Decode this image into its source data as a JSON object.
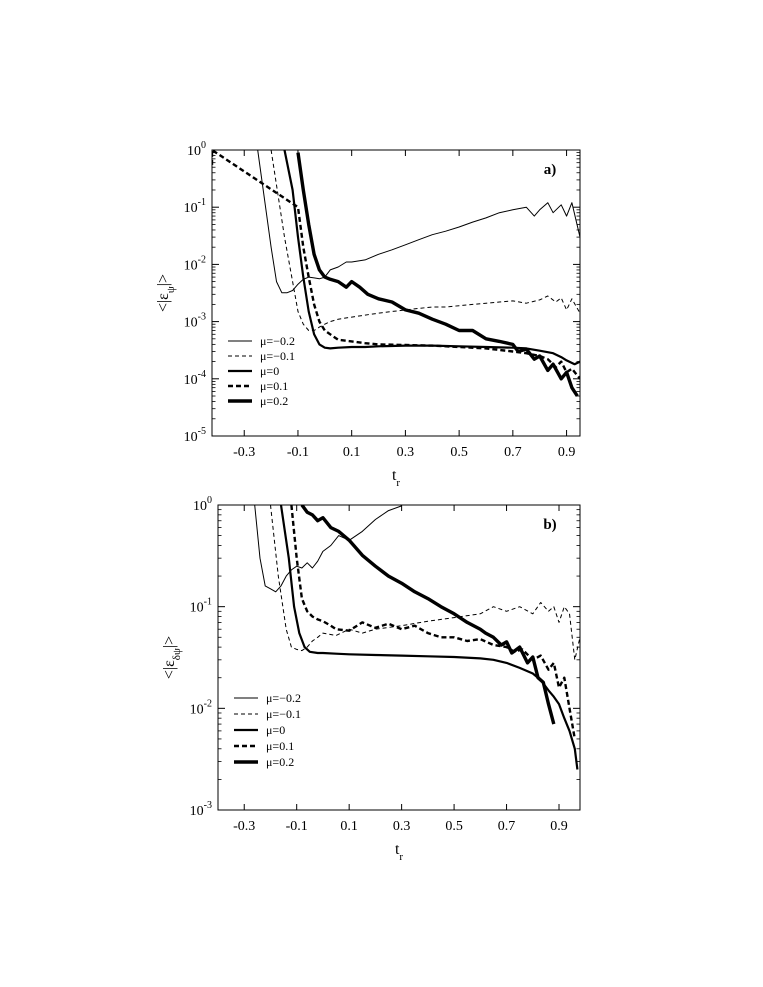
{
  "chart_data": [
    {
      "type": "line",
      "panel_label": "a)",
      "xlabel": "t",
      "xlabel_sub": "r",
      "ylabel": "<|ε",
      "ylabel_sub": "ψ",
      "ylabel_end": "|>",
      "yscale": "log",
      "xlim": [
        -0.42,
        0.95
      ],
      "ylim": [
        1e-05,
        1
      ],
      "xticks": [
        -0.3,
        -0.1,
        0.1,
        0.3,
        0.5,
        0.7,
        0.9
      ],
      "xtick_labels": [
        "-0.3",
        "-0.1",
        "0.1",
        "0.3",
        "0.5",
        "0.7",
        "0.9"
      ],
      "yticks": [
        1e-05,
        0.0001,
        0.001,
        0.01,
        0.1,
        1
      ],
      "ytick_mantissa": [
        "10",
        "10",
        "10",
        "10",
        "10",
        "10"
      ],
      "ytick_exponent": [
        "-5",
        "-4",
        "-3",
        "-2",
        "-1",
        "0"
      ],
      "legend_position": "bottom-left",
      "series": [
        {
          "name": "μ=−0.2",
          "style": "thin-solid",
          "x": [
            -0.25,
            -0.2,
            -0.18,
            -0.16,
            -0.14,
            -0.12,
            -0.1,
            -0.08,
            -0.06,
            -0.04,
            -0.02,
            0.0,
            0.02,
            0.05,
            0.08,
            0.1,
            0.15,
            0.2,
            0.25,
            0.3,
            0.35,
            0.4,
            0.45,
            0.5,
            0.55,
            0.6,
            0.65,
            0.7,
            0.75,
            0.78,
            0.8,
            0.83,
            0.85,
            0.88,
            0.9,
            0.92,
            0.95
          ],
          "y": [
            1.0,
            0.02,
            0.005,
            0.0032,
            0.0032,
            0.0035,
            0.0045,
            0.0055,
            0.006,
            0.0058,
            0.0056,
            0.006,
            0.008,
            0.009,
            0.011,
            0.011,
            0.012,
            0.015,
            0.018,
            0.022,
            0.027,
            0.033,
            0.038,
            0.045,
            0.055,
            0.065,
            0.08,
            0.09,
            0.1,
            0.07,
            0.09,
            0.12,
            0.08,
            0.11,
            0.07,
            0.12,
            0.03
          ]
        },
        {
          "name": "μ=−0.1",
          "style": "thin-dashed",
          "x": [
            -0.2,
            -0.15,
            -0.12,
            -0.1,
            -0.08,
            -0.06,
            -0.04,
            -0.02,
            0.0,
            0.02,
            0.05,
            0.1,
            0.15,
            0.2,
            0.25,
            0.3,
            0.35,
            0.4,
            0.45,
            0.5,
            0.55,
            0.6,
            0.65,
            0.7,
            0.75,
            0.8,
            0.83,
            0.86,
            0.88,
            0.9,
            0.92,
            0.95
          ],
          "y": [
            1.0,
            0.03,
            0.005,
            0.0015,
            0.0009,
            0.0007,
            0.0007,
            0.0008,
            0.0009,
            0.001,
            0.0011,
            0.0012,
            0.0013,
            0.0014,
            0.0015,
            0.0016,
            0.0017,
            0.0018,
            0.0018,
            0.0019,
            0.002,
            0.0021,
            0.0022,
            0.0023,
            0.0021,
            0.0024,
            0.0028,
            0.0022,
            0.0026,
            0.0016,
            0.0025,
            0.0014
          ]
        },
        {
          "name": "μ=0",
          "style": "medium-solid",
          "x": [
            -0.15,
            -0.12,
            -0.1,
            -0.08,
            -0.06,
            -0.04,
            -0.02,
            0.0,
            0.02,
            0.05,
            0.1,
            0.15,
            0.2,
            0.3,
            0.4,
            0.5,
            0.6,
            0.7,
            0.75,
            0.8,
            0.85,
            0.88,
            0.9,
            0.93,
            0.95
          ],
          "y": [
            1.0,
            0.2,
            0.03,
            0.006,
            0.0015,
            0.0006,
            0.0004,
            0.00035,
            0.00034,
            0.00035,
            0.00036,
            0.00036,
            0.00037,
            0.00038,
            0.00038,
            0.00037,
            0.00036,
            0.00035,
            0.00034,
            0.00031,
            0.00028,
            0.00024,
            0.00021,
            0.00018,
            0.0002
          ]
        },
        {
          "name": "μ=0.1",
          "style": "medium-dashed",
          "x": [
            -0.42,
            -0.42,
            -0.1,
            -0.08,
            -0.06,
            -0.04,
            -0.02,
            0.0,
            0.02,
            0.05,
            0.1,
            0.15,
            0.2,
            0.3,
            0.4,
            0.5,
            0.6,
            0.7,
            0.75,
            0.8,
            0.83,
            0.86,
            0.88,
            0.9,
            0.92,
            0.95
          ],
          "y": [
            0.55,
            1.0,
            0.1,
            0.02,
            0.006,
            0.002,
            0.001,
            0.0007,
            0.0006,
            0.00048,
            0.00045,
            0.00042,
            0.0004,
            0.00039,
            0.00038,
            0.00036,
            0.00034,
            0.0003,
            0.00028,
            0.00025,
            0.00022,
            0.00016,
            0.0002,
            0.00013,
            0.00015,
            0.0001
          ]
        },
        {
          "name": "μ=0.2",
          "style": "thick-solid",
          "x": [
            -0.1,
            -0.08,
            -0.06,
            -0.04,
            -0.02,
            0.0,
            0.02,
            0.05,
            0.08,
            0.1,
            0.13,
            0.16,
            0.2,
            0.25,
            0.3,
            0.35,
            0.4,
            0.45,
            0.5,
            0.55,
            0.6,
            0.65,
            0.7,
            0.72,
            0.75,
            0.78,
            0.8,
            0.83,
            0.85,
            0.88,
            0.9,
            0.92,
            0.94
          ],
          "y": [
            0.9,
            0.2,
            0.05,
            0.015,
            0.008,
            0.006,
            0.0055,
            0.005,
            0.004,
            0.005,
            0.004,
            0.003,
            0.0025,
            0.0022,
            0.0016,
            0.0014,
            0.0011,
            0.0009,
            0.0007,
            0.0007,
            0.0005,
            0.00045,
            0.0004,
            0.0003,
            0.00033,
            0.00022,
            0.00025,
            0.00014,
            0.00018,
            0.0001,
            0.00013,
            7e-05,
            5e-05
          ]
        }
      ]
    },
    {
      "type": "line",
      "panel_label": "b)",
      "xlabel": "t",
      "xlabel_sub": "r",
      "ylabel": "<|ε",
      "ylabel_sub": "δψ",
      "ylabel_end": "|>",
      "yscale": "log",
      "xlim": [
        -0.4,
        0.98
      ],
      "ylim": [
        0.001,
        1
      ],
      "xticks": [
        -0.3,
        -0.1,
        0.1,
        0.3,
        0.5,
        0.7,
        0.9
      ],
      "xtick_labels": [
        "-0.3",
        "-0.1",
        "0.1",
        "0.3",
        "0.5",
        "0.7",
        "0.9"
      ],
      "yticks": [
        0.001,
        0.01,
        0.1,
        1
      ],
      "ytick_mantissa": [
        "10",
        "10",
        "10",
        "10"
      ],
      "ytick_exponent": [
        "-3",
        "-2",
        "-1",
        "0"
      ],
      "legend_position": "bottom-left",
      "series": [
        {
          "name": "μ=−0.2",
          "style": "thin-solid",
          "x": [
            -0.4,
            -0.4,
            -0.26,
            -0.24,
            -0.22,
            -0.2,
            -0.18,
            -0.16,
            -0.14,
            -0.12,
            -0.1,
            -0.08,
            -0.06,
            -0.04,
            -0.02,
            0.0,
            0.03,
            0.06,
            0.1,
            0.15,
            0.2,
            0.25,
            0.3
          ],
          "y": [
            0.35,
            1.0,
            1.0,
            0.3,
            0.16,
            0.15,
            0.14,
            0.16,
            0.2,
            0.23,
            0.25,
            0.24,
            0.27,
            0.24,
            0.28,
            0.35,
            0.4,
            0.5,
            0.45,
            0.55,
            0.72,
            0.88,
            0.98
          ]
        },
        {
          "name": "μ=−0.1",
          "style": "thin-dashed",
          "x": [
            -0.2,
            -0.17,
            -0.14,
            -0.12,
            -0.1,
            -0.08,
            -0.06,
            -0.04,
            -0.02,
            0.0,
            0.05,
            0.1,
            0.15,
            0.2,
            0.3,
            0.4,
            0.5,
            0.6,
            0.65,
            0.7,
            0.75,
            0.8,
            0.83,
            0.86,
            0.88,
            0.9,
            0.92,
            0.94,
            0.96,
            0.98
          ],
          "y": [
            1.0,
            0.2,
            0.06,
            0.04,
            0.038,
            0.037,
            0.04,
            0.046,
            0.05,
            0.055,
            0.052,
            0.06,
            0.055,
            0.06,
            0.065,
            0.072,
            0.078,
            0.085,
            0.1,
            0.09,
            0.1,
            0.085,
            0.11,
            0.09,
            0.1,
            0.07,
            0.1,
            0.085,
            0.03,
            0.05
          ]
        },
        {
          "name": "μ=0",
          "style": "medium-solid",
          "x": [
            -0.16,
            -0.13,
            -0.11,
            -0.09,
            -0.07,
            -0.05,
            -0.02,
            0.0,
            0.05,
            0.1,
            0.2,
            0.3,
            0.4,
            0.5,
            0.6,
            0.65,
            0.7,
            0.75,
            0.8,
            0.83,
            0.86,
            0.88,
            0.9,
            0.92,
            0.94,
            0.96,
            0.97
          ],
          "y": [
            1.0,
            0.3,
            0.1,
            0.055,
            0.04,
            0.036,
            0.035,
            0.035,
            0.0345,
            0.034,
            0.0335,
            0.033,
            0.0325,
            0.032,
            0.031,
            0.03,
            0.028,
            0.025,
            0.022,
            0.019,
            0.015,
            0.013,
            0.011,
            0.008,
            0.006,
            0.004,
            0.0025
          ]
        },
        {
          "name": "μ=0.1",
          "style": "medium-dashed",
          "x": [
            -0.12,
            -0.1,
            -0.08,
            -0.06,
            -0.04,
            -0.02,
            0.0,
            0.03,
            0.05,
            0.1,
            0.15,
            0.2,
            0.25,
            0.3,
            0.35,
            0.4,
            0.45,
            0.5,
            0.55,
            0.6,
            0.65,
            0.7,
            0.73,
            0.76,
            0.8,
            0.83,
            0.86,
            0.88,
            0.9,
            0.92,
            0.94,
            0.96
          ],
          "y": [
            1.0,
            0.3,
            0.12,
            0.09,
            0.08,
            0.075,
            0.072,
            0.065,
            0.06,
            0.058,
            0.07,
            0.062,
            0.068,
            0.06,
            0.065,
            0.055,
            0.05,
            0.05,
            0.046,
            0.048,
            0.042,
            0.04,
            0.036,
            0.038,
            0.03,
            0.033,
            0.024,
            0.028,
            0.016,
            0.02,
            0.01,
            0.005
          ]
        },
        {
          "name": "μ=0.2",
          "style": "thick-solid",
          "x": [
            -0.08,
            -0.06,
            -0.04,
            -0.02,
            0.0,
            0.03,
            0.06,
            0.1,
            0.15,
            0.2,
            0.25,
            0.3,
            0.35,
            0.4,
            0.45,
            0.5,
            0.55,
            0.6,
            0.62,
            0.65,
            0.68,
            0.7,
            0.72,
            0.75,
            0.78,
            0.8,
            0.82,
            0.84,
            0.86,
            0.88
          ],
          "y": [
            1.0,
            0.85,
            0.8,
            0.7,
            0.75,
            0.6,
            0.55,
            0.45,
            0.32,
            0.25,
            0.2,
            0.17,
            0.14,
            0.12,
            0.1,
            0.085,
            0.07,
            0.06,
            0.055,
            0.05,
            0.042,
            0.045,
            0.035,
            0.04,
            0.028,
            0.032,
            0.02,
            0.018,
            0.011,
            0.007
          ]
        }
      ]
    }
  ]
}
